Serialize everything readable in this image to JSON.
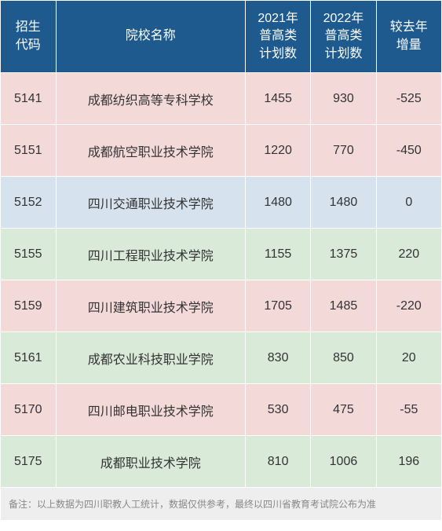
{
  "headers": {
    "code": "招生\n代码",
    "name": "院校名称",
    "plan2021": "2021年\n普高类\n计划数",
    "plan2022": "2022年\n普高类\n计划数",
    "delta": "较去年\n增量"
  },
  "rows": [
    {
      "code": "5141",
      "name": "成都纺织高等专科学校",
      "p2021": "1455",
      "p2022": "930",
      "delta": "-525",
      "bg": "bg-pink",
      "deltaClass": "delta-neg"
    },
    {
      "code": "5151",
      "name": "成都航空职业技术学院",
      "p2021": "1220",
      "p2022": "770",
      "delta": "-450",
      "bg": "bg-pink",
      "deltaClass": "delta-neg"
    },
    {
      "code": "5152",
      "name": "四川交通职业技术学院",
      "p2021": "1480",
      "p2022": "1480",
      "delta": "0",
      "bg": "bg-blue",
      "deltaClass": "delta-zero"
    },
    {
      "code": "5155",
      "name": "四川工程职业技术学院",
      "p2021": "1155",
      "p2022": "1375",
      "delta": "220",
      "bg": "bg-green",
      "deltaClass": "delta-pos"
    },
    {
      "code": "5159",
      "name": "四川建筑职业技术学院",
      "p2021": "1705",
      "p2022": "1485",
      "delta": "-220",
      "bg": "bg-pink",
      "deltaClass": "delta-neg"
    },
    {
      "code": "5161",
      "name": "成都农业科技职业学院",
      "p2021": "830",
      "p2022": "850",
      "delta": "20",
      "bg": "bg-green",
      "deltaClass": "delta-pos"
    },
    {
      "code": "5170",
      "name": "四川邮电职业技术学院",
      "p2021": "530",
      "p2022": "475",
      "delta": "-55",
      "bg": "bg-pink",
      "deltaClass": "delta-neg"
    },
    {
      "code": "5175",
      "name": "成都职业技术学院",
      "p2021": "810",
      "p2022": "1006",
      "delta": "196",
      "bg": "bg-green",
      "deltaClass": "delta-pos"
    }
  ],
  "footer": "备注：以上数据为四川职教人工统计，数据仅供参考，最终以四川省教育考试院公布为准"
}
